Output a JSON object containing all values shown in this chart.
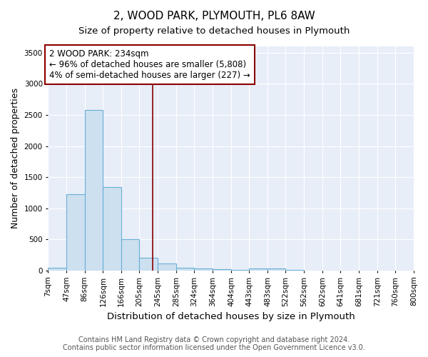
{
  "title": "2, WOOD PARK, PLYMOUTH, PL6 8AW",
  "subtitle": "Size of property relative to detached houses in Plymouth",
  "xlabel": "Distribution of detached houses by size in Plymouth",
  "ylabel": "Number of detached properties",
  "bins": [
    "7sqm",
    "47sqm",
    "86sqm",
    "126sqm",
    "166sqm",
    "205sqm",
    "245sqm",
    "285sqm",
    "324sqm",
    "364sqm",
    "404sqm",
    "443sqm",
    "483sqm",
    "522sqm",
    "562sqm",
    "602sqm",
    "641sqm",
    "681sqm",
    "721sqm",
    "760sqm",
    "800sqm"
  ],
  "bin_edges": [
    7,
    47,
    86,
    126,
    166,
    205,
    245,
    285,
    324,
    364,
    404,
    443,
    483,
    522,
    562,
    602,
    641,
    681,
    721,
    760,
    800
  ],
  "values": [
    50,
    1230,
    2580,
    1340,
    500,
    200,
    110,
    50,
    30,
    20,
    15,
    30,
    30,
    5,
    3,
    2,
    1,
    1,
    1,
    1
  ],
  "bar_color": "#cce0f0",
  "bar_edge_color": "#6aafd6",
  "vline_x": 234,
  "vline_color": "#8b0000",
  "annotation_line1": "2 WOOD PARK: 234sqm",
  "annotation_line2": "← 96% of detached houses are smaller (5,808)",
  "annotation_line3": "4% of semi-detached houses are larger (227) →",
  "annotation_box_color": "white",
  "annotation_box_edge": "#8b0000",
  "ylim": [
    0,
    3600
  ],
  "yticks": [
    0,
    500,
    1000,
    1500,
    2000,
    2500,
    3000,
    3500
  ],
  "background_color": "#e8eef8",
  "grid_color": "#ffffff",
  "footer_line1": "Contains HM Land Registry data © Crown copyright and database right 2024.",
  "footer_line2": "Contains public sector information licensed under the Open Government Licence v3.0.",
  "title_fontsize": 11,
  "subtitle_fontsize": 9.5,
  "xlabel_fontsize": 9.5,
  "ylabel_fontsize": 9,
  "tick_fontsize": 7.5,
  "annotation_fontsize": 8.5,
  "footer_fontsize": 7
}
